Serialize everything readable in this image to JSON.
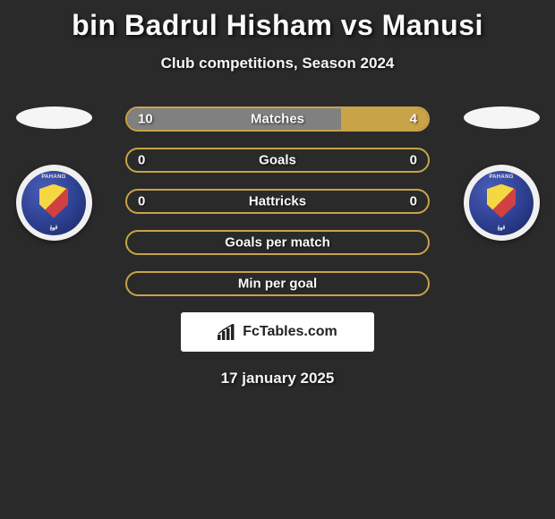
{
  "title": "bin Badrul Hisham vs Manusi",
  "subtitle": "Club competitions, Season 2024",
  "date": "17 january 2025",
  "brand": "FcTables.com",
  "colors": {
    "background": "#2a2a2a",
    "border": "#c9a348",
    "left_fill": "#808080",
    "right_fill": "#c9a348",
    "text": "#fafafa",
    "brand_bg": "#ffffff",
    "brand_text": "#222222"
  },
  "rows": [
    {
      "label": "Matches",
      "left_val": "10",
      "right_val": "4",
      "left_pct": 71,
      "right_pct": 29,
      "show_vals": true
    },
    {
      "label": "Goals",
      "left_val": "0",
      "right_val": "0",
      "left_pct": 0,
      "right_pct": 0,
      "show_vals": true
    },
    {
      "label": "Hattricks",
      "left_val": "0",
      "right_val": "0",
      "left_pct": 0,
      "right_pct": 0,
      "show_vals": true
    },
    {
      "label": "Goals per match",
      "left_val": "",
      "right_val": "",
      "left_pct": 0,
      "right_pct": 0,
      "show_vals": false
    },
    {
      "label": "Min per goal",
      "left_val": "",
      "right_val": "",
      "left_pct": 0,
      "right_pct": 0,
      "show_vals": false
    }
  ]
}
